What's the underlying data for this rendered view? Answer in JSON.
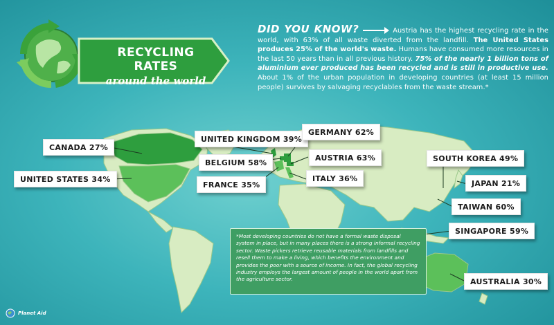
{
  "header": {
    "title": "RECYCLING RATES",
    "subtitle": "around the world"
  },
  "did_you_know": {
    "heading": "DID YOU KNOW?",
    "p1": "Austria has the highest recycling rate in the world, with 63% of all waste diverted from the landfill.",
    "p2": "The United States produces 25% of the world's waste.",
    "p3": "Humans have consumed more resources in the last 50 years than in all previous history.",
    "p4": "75% of the nearly 1 billion tons of aluminium ever produced has been recycled and is still in productive use.",
    "p5": "About 1% of the urban population in developing countries (at least 15 million people) survives by salvaging recyclables from the waste stream.*"
  },
  "countries": [
    {
      "label": "CANADA 27%"
    },
    {
      "label": "UNITED STATES 34%"
    },
    {
      "label": "UNITED KINGDOM 39%"
    },
    {
      "label": "BELGIUM 58%"
    },
    {
      "label": "FRANCE 35%"
    },
    {
      "label": "GERMANY 62%"
    },
    {
      "label": "AUSTRIA 63%"
    },
    {
      "label": "ITALY 36%"
    },
    {
      "label": "SOUTH KOREA 49%"
    },
    {
      "label": "JAPAN 21%"
    },
    {
      "label": "TAIWAN 60%"
    },
    {
      "label": "SINGAPORE 59%"
    },
    {
      "label": "AUSTRALIA 30%"
    }
  ],
  "footnote": "*Most developing countries do not have a formal waste disposal system in place, but in many places there is a strong informal recycling sector. Waste pickers retrieve reusable materials from landfills and resell them to make a living, which benefits the environment and provides the poor with a source of income. In fact, the global recycling industry employs the largest amount of people in the world apart from the agriculture sector.",
  "logo": {
    "name": "Planet Aid"
  },
  "colors": {
    "land": "#d8ecc2",
    "highlight_dark": "#2e9e3e",
    "highlight_light": "#5cc05a",
    "ocean": "#3db4bb"
  }
}
